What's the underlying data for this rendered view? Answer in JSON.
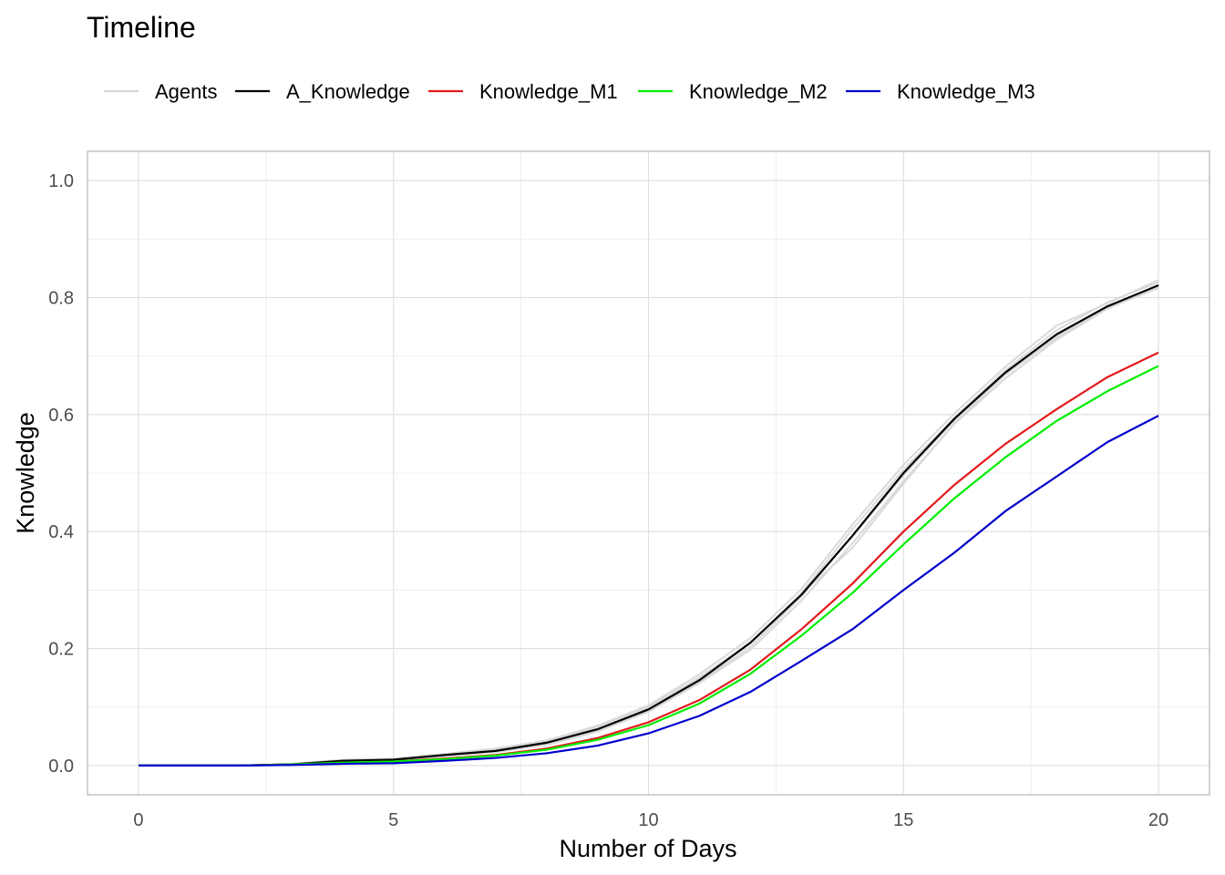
{
  "chart_data": {
    "type": "line",
    "title": "Timeline",
    "xlabel": "Number of Days",
    "ylabel": "Knowledge",
    "xlim": [
      -1,
      21
    ],
    "ylim": [
      -0.05,
      1.05
    ],
    "x_ticks": [
      0,
      5,
      10,
      15,
      20
    ],
    "x_tick_labels": [
      "0",
      "5",
      "10",
      "15",
      "20"
    ],
    "y_ticks": [
      0.0,
      0.2,
      0.4,
      0.6,
      0.8,
      1.0
    ],
    "y_tick_labels": [
      "0.0",
      "0.2",
      "0.4",
      "0.6",
      "0.8",
      "1.0"
    ],
    "grid": true,
    "legend_position": "top",
    "x": [
      0,
      1,
      2,
      3,
      4,
      5,
      6,
      7,
      8,
      9,
      10,
      11,
      12,
      13,
      14,
      15,
      16,
      17,
      18,
      19,
      20
    ],
    "series": [
      {
        "name": "Agents",
        "color": "#d9d9d9",
        "runs": [
          [
            0,
            0,
            0,
            0.002,
            0.008,
            0.011,
            0.019,
            0.027,
            0.041,
            0.066,
            0.1,
            0.151,
            0.21,
            0.295,
            0.404,
            0.506,
            0.595,
            0.676,
            0.744,
            0.792,
            0.826
          ],
          [
            0,
            0,
            0,
            0.002,
            0.006,
            0.009,
            0.016,
            0.023,
            0.035,
            0.058,
            0.092,
            0.141,
            0.198,
            0.282,
            0.38,
            0.486,
            0.584,
            0.662,
            0.728,
            0.781,
            0.818
          ],
          [
            0,
            0,
            0,
            0.003,
            0.01,
            0.012,
            0.02,
            0.029,
            0.043,
            0.068,
            0.103,
            0.156,
            0.218,
            0.302,
            0.412,
            0.514,
            0.602,
            0.682,
            0.752,
            0.79,
            0.83
          ],
          [
            0,
            0,
            0,
            0.001,
            0.007,
            0.01,
            0.017,
            0.024,
            0.037,
            0.06,
            0.094,
            0.143,
            0.203,
            0.289,
            0.392,
            0.496,
            0.591,
            0.671,
            0.736,
            0.786,
            0.82
          ],
          [
            0,
            0,
            0,
            0.002,
            0.009,
            0.011,
            0.018,
            0.026,
            0.039,
            0.062,
            0.097,
            0.148,
            0.212,
            0.293,
            0.372,
            0.482,
            0.586,
            0.668,
            0.732,
            0.782,
            0.816
          ]
        ]
      },
      {
        "name": "A_Knowledge",
        "color": "#000000",
        "values": [
          0,
          0,
          0,
          0.002,
          0.008,
          0.01,
          0.018,
          0.025,
          0.039,
          0.062,
          0.096,
          0.146,
          0.21,
          0.292,
          0.393,
          0.5,
          0.593,
          0.672,
          0.737,
          0.785,
          0.821
        ]
      },
      {
        "name": "Knowledge_M1",
        "color": "#e31a1c",
        "values": [
          0,
          0,
          0,
          0.002,
          0.005,
          0.007,
          0.012,
          0.018,
          0.029,
          0.047,
          0.074,
          0.112,
          0.164,
          0.233,
          0.311,
          0.4,
          0.48,
          0.55,
          0.609,
          0.664,
          0.706
        ]
      },
      {
        "name": "Knowledge_M2",
        "color": "#00ee00",
        "values": [
          0,
          0,
          0,
          0.002,
          0.005,
          0.007,
          0.011,
          0.017,
          0.027,
          0.044,
          0.069,
          0.106,
          0.157,
          0.222,
          0.295,
          0.378,
          0.457,
          0.527,
          0.589,
          0.64,
          0.683
        ]
      },
      {
        "name": "Knowledge_M3",
        "color": "#0000cc",
        "values": [
          0,
          0,
          0,
          0.001,
          0.003,
          0.004,
          0.008,
          0.013,
          0.021,
          0.034,
          0.055,
          0.085,
          0.126,
          0.179,
          0.233,
          0.3,
          0.364,
          0.435,
          0.494,
          0.553,
          0.598
        ]
      }
    ]
  }
}
